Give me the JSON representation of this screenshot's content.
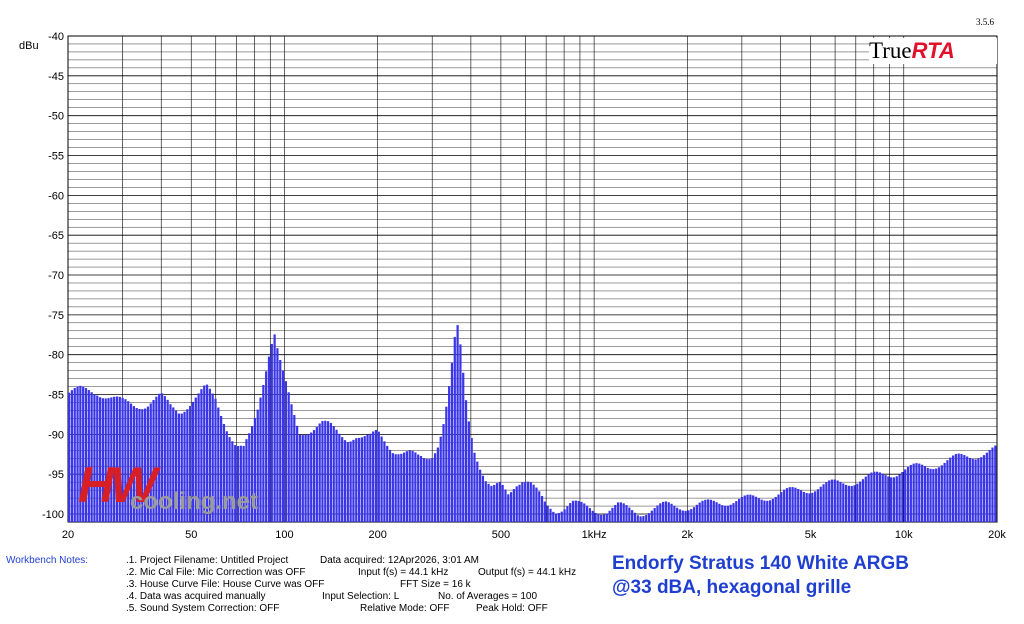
{
  "app": {
    "name_part1": "True",
    "name_part2": "RTA",
    "version": "3.5.6"
  },
  "chart_data": {
    "type": "bar",
    "ylabel": "dBu",
    "ylim": [
      -101,
      -40
    ],
    "y_ticks": [
      -40,
      -45,
      -50,
      -55,
      -60,
      -65,
      -70,
      -75,
      -80,
      -85,
      -90,
      -95,
      -100
    ],
    "x_scale": "log",
    "xlim": [
      20,
      20000
    ],
    "x_ticks": [
      {
        "value": 20,
        "label": "20"
      },
      {
        "value": 50,
        "label": "50"
      },
      {
        "value": 100,
        "label": "100"
      },
      {
        "value": 200,
        "label": "200"
      },
      {
        "value": 500,
        "label": "500"
      },
      {
        "value": 1000,
        "label": "1kHz"
      },
      {
        "value": 2000,
        "label": "2k"
      },
      {
        "value": 5000,
        "label": "5k"
      },
      {
        "value": 10000,
        "label": "10k"
      },
      {
        "value": 20000,
        "label": "20k"
      }
    ],
    "grid": true,
    "bar_color": "#3a35e8",
    "series": [
      {
        "points": [
          [
            20,
            -84.8
          ],
          [
            22,
            -84.5
          ],
          [
            25,
            -84.6
          ],
          [
            28,
            -85.5
          ],
          [
            30,
            -86.0
          ],
          [
            33,
            -86.3
          ],
          [
            36,
            -86.2
          ],
          [
            40,
            -85.3
          ],
          [
            43,
            -86.5
          ],
          [
            46,
            -87.0
          ],
          [
            50,
            -86.0
          ],
          [
            53,
            -85.2
          ],
          [
            56,
            -84.2
          ],
          [
            60,
            -85.5
          ],
          [
            63,
            -87.5
          ],
          [
            66,
            -89.5
          ],
          [
            70,
            -91.5
          ],
          [
            74,
            -92.0
          ],
          [
            78,
            -90.0
          ],
          [
            82,
            -87.0
          ],
          [
            86,
            -83.0
          ],
          [
            90,
            -79.0
          ],
          [
            93,
            -77.0
          ],
          [
            96,
            -80.0
          ],
          [
            100,
            -83.0
          ],
          [
            106,
            -87.0
          ],
          [
            112,
            -90.0
          ],
          [
            118,
            -89.5
          ],
          [
            125,
            -89.0
          ],
          [
            132,
            -88.5
          ],
          [
            140,
            -89.0
          ],
          [
            150,
            -90.0
          ],
          [
            160,
            -90.5
          ],
          [
            170,
            -90.0
          ],
          [
            180,
            -90.5
          ],
          [
            190,
            -90.5
          ],
          [
            200,
            -89.8
          ],
          [
            212,
            -90.8
          ],
          [
            225,
            -91.8
          ],
          [
            240,
            -92.3
          ],
          [
            255,
            -92.5
          ],
          [
            270,
            -93.0
          ],
          [
            285,
            -93.0
          ],
          [
            300,
            -92.5
          ],
          [
            315,
            -91.0
          ],
          [
            330,
            -88.0
          ],
          [
            345,
            -83.0
          ],
          [
            355,
            -78.5
          ],
          [
            365,
            -76.5
          ],
          [
            375,
            -81.0
          ],
          [
            390,
            -87.0
          ],
          [
            410,
            -91.5
          ],
          [
            430,
            -94.0
          ],
          [
            450,
            -96.0
          ],
          [
            470,
            -97.0
          ],
          [
            500,
            -96.5
          ],
          [
            530,
            -97.5
          ],
          [
            560,
            -96.0
          ],
          [
            590,
            -95.5
          ],
          [
            620,
            -96.0
          ],
          [
            660,
            -97.5
          ],
          [
            700,
            -99.0
          ],
          [
            750,
            -99.5
          ],
          [
            800,
            -99.0
          ],
          [
            850,
            -98.5
          ],
          [
            900,
            -99.0
          ],
          [
            950,
            -99.3
          ],
          [
            1000,
            -99.5
          ],
          [
            1100,
            -99.5
          ],
          [
            1200,
            -99.0
          ],
          [
            1300,
            -99.5
          ],
          [
            1400,
            -99.8
          ],
          [
            1500,
            -99.5
          ],
          [
            1700,
            -99.0
          ],
          [
            1900,
            -99.0
          ],
          [
            2100,
            -99.0
          ],
          [
            2300,
            -98.8
          ],
          [
            2500,
            -98.5
          ],
          [
            2800,
            -98.3
          ],
          [
            3100,
            -98.2
          ],
          [
            3400,
            -98.0
          ],
          [
            3800,
            -97.6
          ],
          [
            4200,
            -97.3
          ],
          [
            4600,
            -97.0
          ],
          [
            5000,
            -96.8
          ],
          [
            5500,
            -96.5
          ],
          [
            6000,
            -96.2
          ],
          [
            6500,
            -96.0
          ],
          [
            7000,
            -95.8
          ],
          [
            7500,
            -95.6
          ],
          [
            8000,
            -95.3
          ],
          [
            8600,
            -95.0
          ],
          [
            9300,
            -94.8
          ],
          [
            10000,
            -94.5
          ],
          [
            11000,
            -94.2
          ],
          [
            12000,
            -94.0
          ],
          [
            13000,
            -93.6
          ],
          [
            14000,
            -93.3
          ],
          [
            15000,
            -93.0
          ],
          [
            16000,
            -92.8
          ],
          [
            17000,
            -92.6
          ],
          [
            18000,
            -92.3
          ],
          [
            19000,
            -92.1
          ],
          [
            20000,
            -91.9
          ]
        ]
      }
    ]
  },
  "notes": {
    "label": "Workbench Notes:",
    "col1": [
      ".1. Project Filename: Untitled Project",
      ".2. Mic Cal File: Mic Correction was OFF",
      ".3. House Curve File: House Curve was OFF",
      ".4. Data was acquired manually",
      ".5. Sound System Correction: OFF"
    ],
    "col2": [
      "Data acquired: 12Apr2026, 3:01 AM",
      "Input f(s) = 44.1 kHz",
      "FFT Size = 16 k",
      "Input Selection: L",
      "Relative Mode:  OFF"
    ],
    "col3": [
      "",
      "Output f(s) = 44.1 kHz",
      "",
      "No. of Averages = 100",
      "Peak Hold: OFF"
    ]
  },
  "caption": {
    "line1": "Endorfy Stratus 140 White ARGB",
    "line2": "@33 dBA, hexagonal grille"
  },
  "watermark": {
    "part1": "HW",
    "part2": "cooling.net"
  }
}
